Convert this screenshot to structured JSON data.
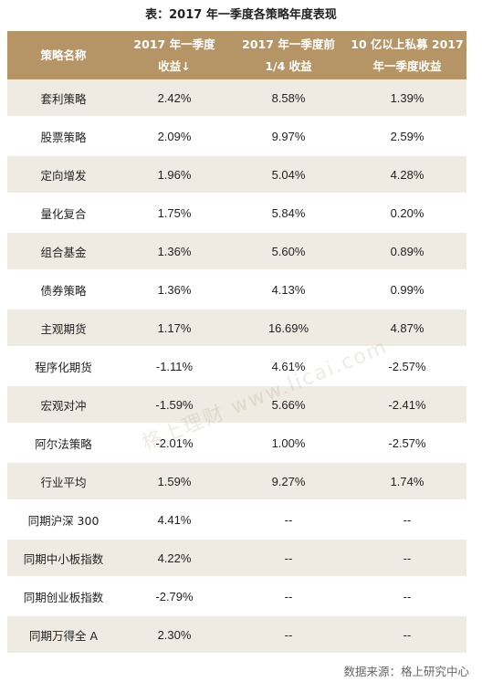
{
  "title": "表：2017 年一季度各策略年度表现",
  "headers": [
    [
      "策略名称"
    ],
    [
      "2017 年一季度",
      "收益↓"
    ],
    [
      "2017 年一季度前",
      "1/4 收益"
    ],
    [
      "10 亿以上私募 2017",
      "年一季度收益"
    ]
  ],
  "strategy_rows": [
    [
      "套利策略",
      "2.42%",
      "8.58%",
      "1.39%"
    ],
    [
      "股票策略",
      "2.09%",
      "9.97%",
      "2.59%"
    ],
    [
      "定向增发",
      "1.96%",
      "5.04%",
      "4.28%"
    ],
    [
      "量化复合",
      "1.75%",
      "5.84%",
      "0.20%"
    ],
    [
      "组合基金",
      "1.36%",
      "5.60%",
      "0.89%"
    ],
    [
      "债券策略",
      "1.36%",
      "4.13%",
      "0.99%"
    ],
    [
      "主观期货",
      "1.17%",
      "16.69%",
      "4.87%"
    ],
    [
      "程序化期货",
      "-1.11%",
      "4.61%",
      "-2.57%"
    ],
    [
      "宏观对冲",
      "-1.59%",
      "5.66%",
      "-2.41%"
    ],
    [
      "阿尔法策略",
      "-2.01%",
      "1.00%",
      "-2.57%"
    ]
  ],
  "summary_rows": [
    [
      "行业平均",
      "1.59%",
      "9.27%",
      "1.74%"
    ],
    [
      "同期沪深 300",
      "4.41%",
      "--",
      "--"
    ],
    [
      "同期中小板指数",
      "4.22%",
      "--",
      "--"
    ],
    [
      "同期创业板指数",
      "-2.79%",
      "--",
      "--"
    ],
    [
      "同期万得全 A",
      "2.30%",
      "--",
      "--"
    ]
  ],
  "watermark": "格上理财  www.licai.com",
  "source": "数据来源：格上研究中心",
  "colors": {
    "header_bg": "#b59465",
    "row_alt_bg": "#efebe2",
    "header_text": "#ffffff"
  }
}
